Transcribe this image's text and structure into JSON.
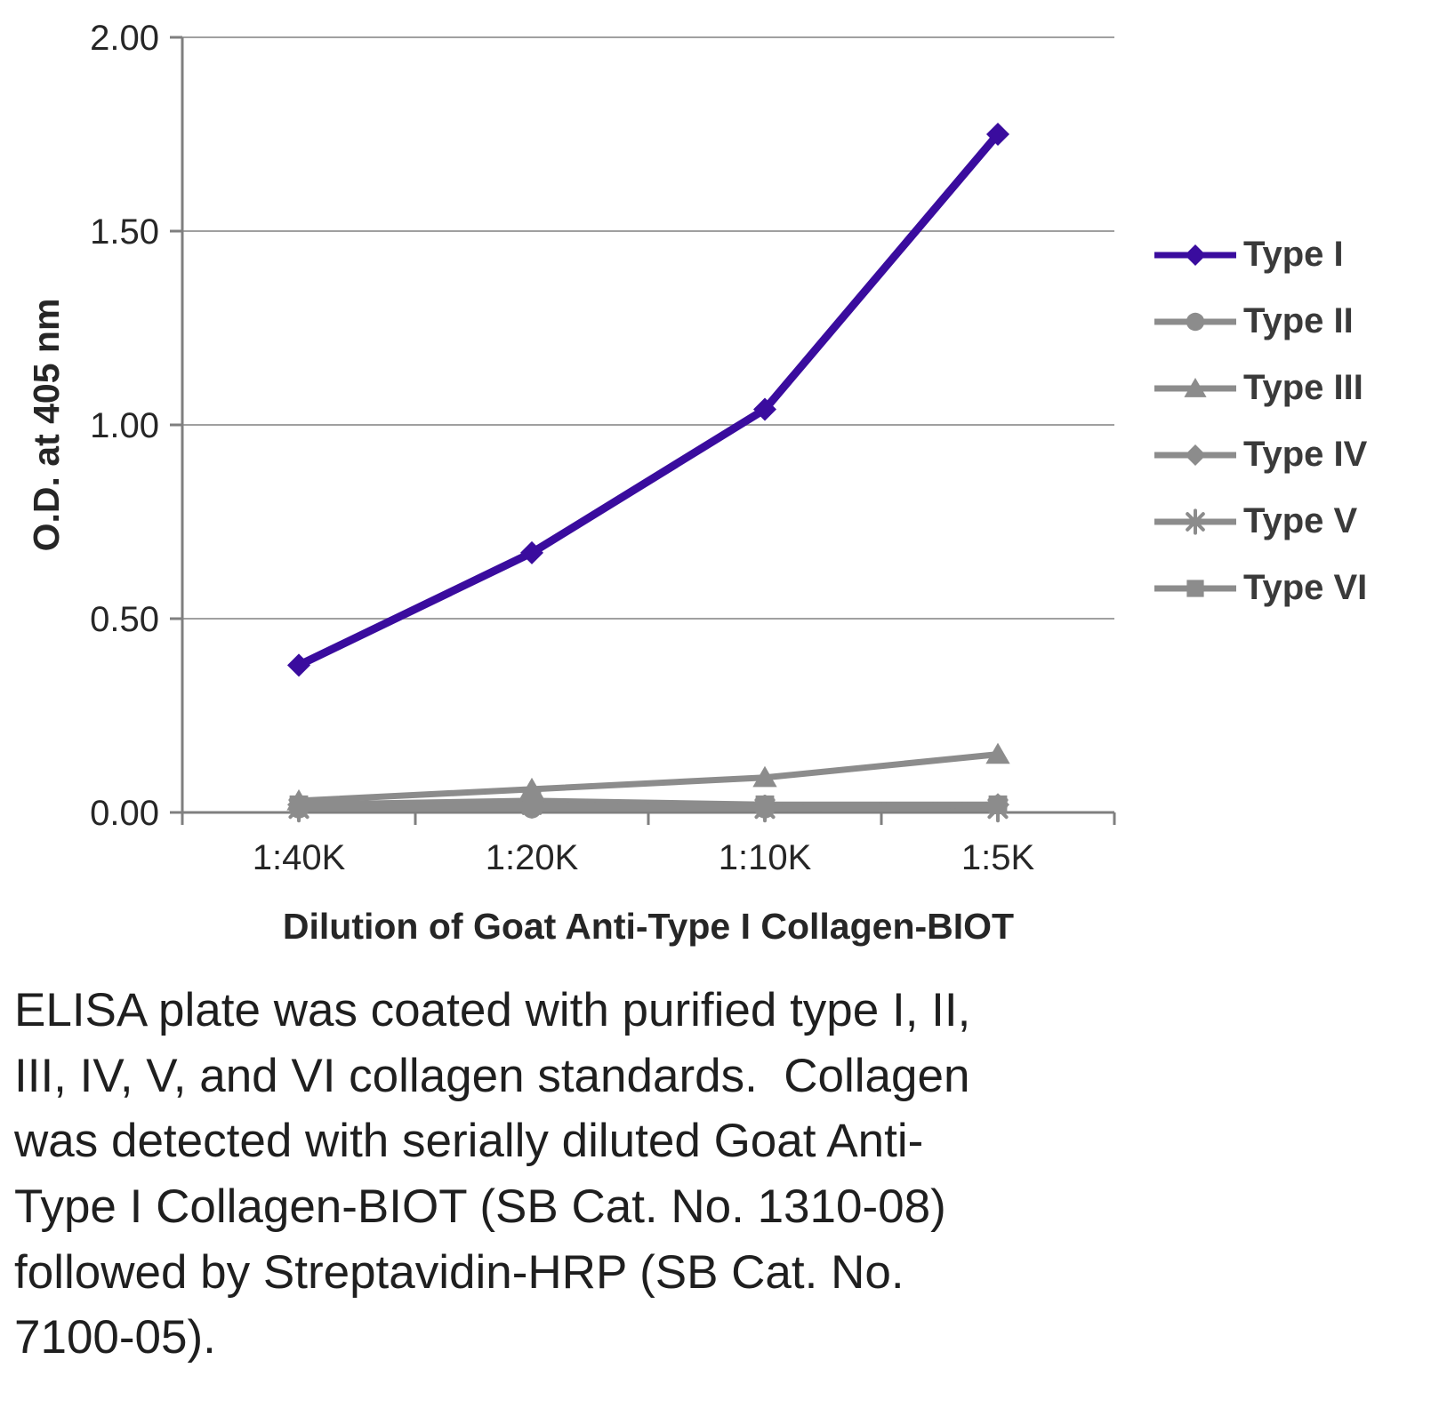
{
  "chart_data": {
    "type": "line",
    "categories": [
      "1:40K",
      "1:20K",
      "1:10K",
      "1:5K"
    ],
    "series": [
      {
        "name": "Type I",
        "marker": "diamond",
        "color": "#3A0C9E",
        "values": [
          0.38,
          0.67,
          1.04,
          1.75
        ]
      },
      {
        "name": "Type II",
        "marker": "circle",
        "color": "#8C8C8C",
        "values": [
          0.01,
          0.01,
          0.01,
          0.02
        ]
      },
      {
        "name": "Type III",
        "marker": "triangle",
        "color": "#8C8C8C",
        "values": [
          0.03,
          0.06,
          0.09,
          0.15
        ]
      },
      {
        "name": "Type IV",
        "marker": "diamond",
        "color": "#8C8C8C",
        "values": [
          0.02,
          0.02,
          0.01,
          0.02
        ]
      },
      {
        "name": "Type V",
        "marker": "asterisk",
        "color": "#8C8C8C",
        "values": [
          0.01,
          0.02,
          0.01,
          0.01
        ]
      },
      {
        "name": "Type VI",
        "marker": "square",
        "color": "#8C8C8C",
        "values": [
          0.02,
          0.03,
          0.02,
          0.02
        ]
      }
    ],
    "title": "",
    "xlabel": "Dilution of Goat Anti-Type I Collagen-BIOT",
    "ylabel": "O.D. at 405 nm",
    "ylim": [
      0,
      2.0
    ],
    "y_ticks": [
      "0.00",
      "0.50",
      "1.00",
      "1.50",
      "2.00"
    ],
    "grid": true,
    "legend_position": "right",
    "colors": {
      "grid": "#A0A0A0",
      "axis": "#7F7F7F",
      "tick_text": "#262626"
    }
  },
  "caption": {
    "text": "ELISA plate was coated with purified type I, II,\nIII, IV, V, and VI collagen standards.  Collagen\nwas detected with serially diluted Goat Anti-\nType I Collagen-BIOT (SB Cat. No. 1310-08)\nfollowed by Streptavidin-HRP (SB Cat. No.\n7100-05)."
  }
}
